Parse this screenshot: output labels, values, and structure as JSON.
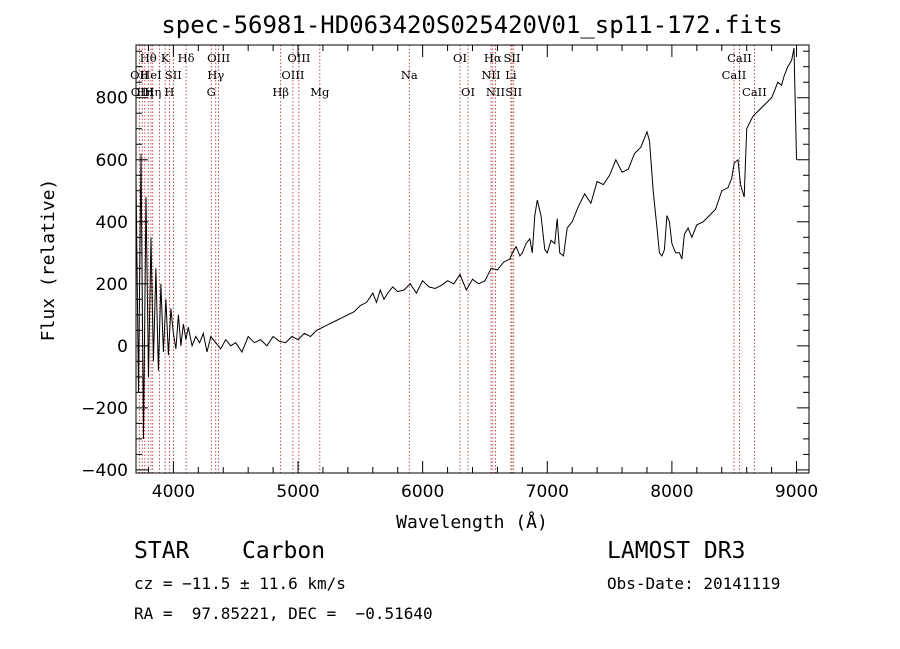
{
  "chart_data": {
    "type": "line",
    "title": "spec-56981-HD063420S025420V01_sp11-172.fits",
    "xlabel": "Wavelength (Å)",
    "ylabel": "Flux (relative)",
    "xlim": [
      3700,
      9100
    ],
    "ylim": [
      -410,
      970
    ],
    "x_ticks": [
      {
        "value": 4000,
        "label": "4000"
      },
      {
        "value": 5000,
        "label": "5000"
      },
      {
        "value": 6000,
        "label": "6000"
      },
      {
        "value": 7000,
        "label": "7000"
      },
      {
        "value": 8000,
        "label": "8000"
      },
      {
        "value": 9000,
        "label": "9000"
      }
    ],
    "y_ticks": [
      {
        "value": -400,
        "label": "−400"
      },
      {
        "value": -200,
        "label": "−200"
      },
      {
        "value": 0,
        "label": "0"
      },
      {
        "value": 200,
        "label": "200"
      },
      {
        "value": 400,
        "label": "400"
      },
      {
        "value": 600,
        "label": "600"
      },
      {
        "value": 800,
        "label": "800"
      }
    ],
    "grid": false,
    "line_color": "#000000",
    "marker_color": "#b22222",
    "spectrum": {
      "name": "",
      "x": [
        3700,
        3720,
        3740,
        3760,
        3780,
        3800,
        3820,
        3840,
        3860,
        3880,
        3900,
        3920,
        3940,
        3960,
        3980,
        4000,
        4020,
        4040,
        4060,
        4080,
        4100,
        4120,
        4150,
        4180,
        4210,
        4240,
        4270,
        4300,
        4340,
        4380,
        4420,
        4460,
        4500,
        4550,
        4600,
        4650,
        4700,
        4750,
        4800,
        4850,
        4900,
        4950,
        5000,
        5050,
        5100,
        5150,
        5200,
        5250,
        5300,
        5350,
        5400,
        5450,
        5500,
        5550,
        5600,
        5630,
        5660,
        5690,
        5720,
        5760,
        5800,
        5850,
        5900,
        5950,
        6000,
        6050,
        6100,
        6150,
        6200,
        6250,
        6300,
        6350,
        6400,
        6450,
        6500,
        6550,
        6600,
        6650,
        6700,
        6720,
        6750,
        6780,
        6800,
        6830,
        6860,
        6880,
        6900,
        6920,
        6950,
        6980,
        7000,
        7030,
        7060,
        7080,
        7100,
        7130,
        7160,
        7200,
        7250,
        7300,
        7350,
        7400,
        7450,
        7500,
        7550,
        7600,
        7650,
        7700,
        7750,
        7800,
        7820,
        7850,
        7870,
        7880,
        7900,
        7920,
        7940,
        7960,
        7980,
        8000,
        8030,
        8060,
        8080,
        8100,
        8130,
        8160,
        8200,
        8250,
        8300,
        8350,
        8400,
        8450,
        8480,
        8500,
        8530,
        8550,
        8580,
        8600,
        8650,
        8700,
        8750,
        8800,
        8830,
        8850,
        8880,
        8900,
        8930,
        8960,
        8980,
        9000
      ],
      "y": [
        550,
        -150,
        620,
        -300,
        480,
        -100,
        350,
        -50,
        250,
        -80,
        200,
        -20,
        150,
        -30,
        120,
        40,
        -10,
        100,
        0,
        70,
        20,
        60,
        0,
        30,
        10,
        40,
        -20,
        30,
        10,
        -10,
        20,
        0,
        10,
        -20,
        30,
        10,
        20,
        0,
        30,
        15,
        10,
        30,
        20,
        40,
        30,
        50,
        60,
        70,
        80,
        90,
        100,
        110,
        130,
        140,
        170,
        140,
        180,
        150,
        170,
        190,
        175,
        180,
        200,
        170,
        210,
        190,
        185,
        195,
        210,
        200,
        230,
        180,
        215,
        200,
        210,
        250,
        245,
        270,
        280,
        300,
        320,
        290,
        300,
        330,
        345,
        300,
        420,
        470,
        420,
        310,
        300,
        340,
        330,
        410,
        300,
        290,
        380,
        400,
        450,
        490,
        460,
        530,
        520,
        550,
        600,
        560,
        570,
        620,
        640,
        690,
        660,
        500,
        420,
        380,
        300,
        290,
        310,
        420,
        400,
        330,
        300,
        300,
        280,
        360,
        380,
        350,
        390,
        400,
        420,
        440,
        500,
        510,
        540,
        590,
        600,
        520,
        480,
        700,
        740,
        760,
        780,
        800,
        830,
        850,
        840,
        870,
        900,
        920,
        960,
        600
      ]
    },
    "lines": [
      {
        "lambda": 3727,
        "label": "OII",
        "row": 1
      },
      {
        "lambda": 3750,
        "label": "OIII",
        "row": 2
      },
      {
        "lambda": 3771,
        "label": "Hη",
        "row": 2
      },
      {
        "lambda": 3798,
        "label": "Hθ",
        "row": 0
      },
      {
        "lambda": 3820,
        "label": "HeI",
        "row": 1
      },
      {
        "lambda": 3835,
        "label": "Hη",
        "row": 2
      },
      {
        "lambda": 3889,
        "label": "",
        "row": 0
      },
      {
        "lambda": 3934,
        "label": "K",
        "row": 0
      },
      {
        "lambda": 3968,
        "label": "H",
        "row": 2
      },
      {
        "lambda": 4000,
        "label": "SII",
        "row": 1
      },
      {
        "lambda": 4102,
        "label": "Hδ",
        "row": 0
      },
      {
        "lambda": 4304,
        "label": "G",
        "row": 2
      },
      {
        "lambda": 4340,
        "label": "Hγ",
        "row": 1
      },
      {
        "lambda": 4363,
        "label": "OIII",
        "row": 0
      },
      {
        "lambda": 4861,
        "label": "Hβ",
        "row": 2
      },
      {
        "lambda": 4959,
        "label": "OIII",
        "row": 1
      },
      {
        "lambda": 5007,
        "label": "OIII",
        "row": 0
      },
      {
        "lambda": 5175,
        "label": "Mg",
        "row": 2
      },
      {
        "lambda": 5893,
        "label": "Na",
        "row": 1
      },
      {
        "lambda": 6300,
        "label": "OI",
        "row": 0
      },
      {
        "lambda": 6364,
        "label": "OI",
        "row": 2
      },
      {
        "lambda": 6548,
        "label": "NII",
        "row": 1
      },
      {
        "lambda": 6563,
        "label": "Hα",
        "row": 0
      },
      {
        "lambda": 6584,
        "label": "NII",
        "row": 2
      },
      {
        "lambda": 6708,
        "label": "Li",
        "row": 1
      },
      {
        "lambda": 6717,
        "label": "SII",
        "row": 0
      },
      {
        "lambda": 6731,
        "label": "SII",
        "row": 2
      },
      {
        "lambda": 8498,
        "label": "CaII",
        "row": 1
      },
      {
        "lambda": 8542,
        "label": "CaII",
        "row": 0
      },
      {
        "lambda": 8662,
        "label": "CaII",
        "row": 2
      }
    ]
  },
  "info": {
    "class": "STAR",
    "subclass": "Carbon",
    "survey": "LAMOST DR3",
    "cz": "cz = −11.5 ± 11.6 km/s",
    "obs_date": "Obs-Date: 20141119",
    "coords": "RA =  97.85221, DEC =  −0.51640"
  }
}
